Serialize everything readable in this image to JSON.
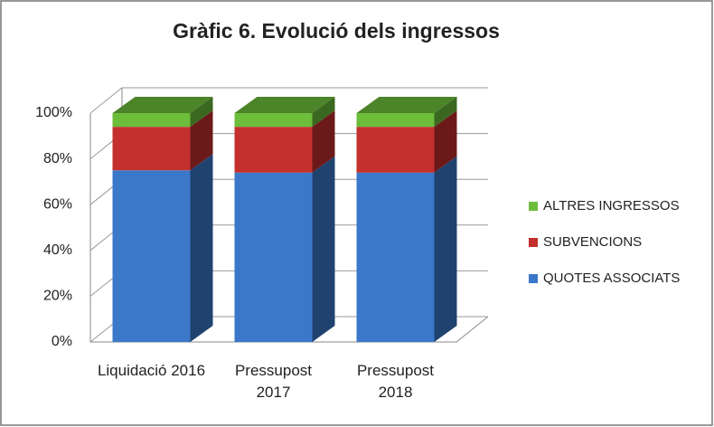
{
  "chart_data": {
    "type": "bar3d_stacked",
    "title": "Gràfic 6. Evolució dels ingressos",
    "categories": [
      "Liquidació 2016",
      "Pressupost 2017",
      "Pressupost 2018"
    ],
    "series": [
      {
        "name": "QUOTES ASSOCIATS",
        "color": "#3b78c9",
        "values": [
          75,
          74,
          74
        ]
      },
      {
        "name": "SUBVENCIONS",
        "color": "#c3302e",
        "values": [
          19,
          20,
          20
        ]
      },
      {
        "name": "ALTRES INGRESSOS",
        "color": "#6cbd3a",
        "values": [
          6,
          6,
          6
        ]
      }
    ],
    "ylim": [
      0,
      100
    ],
    "yticks": [
      {
        "value": 0,
        "label": "0%"
      },
      {
        "value": 20,
        "label": "20%"
      },
      {
        "value": 40,
        "label": "40%"
      },
      {
        "value": 60,
        "label": "60%"
      },
      {
        "value": 80,
        "label": "80%"
      },
      {
        "value": 100,
        "label": "100%"
      }
    ],
    "grid": true,
    "legend": "right"
  }
}
